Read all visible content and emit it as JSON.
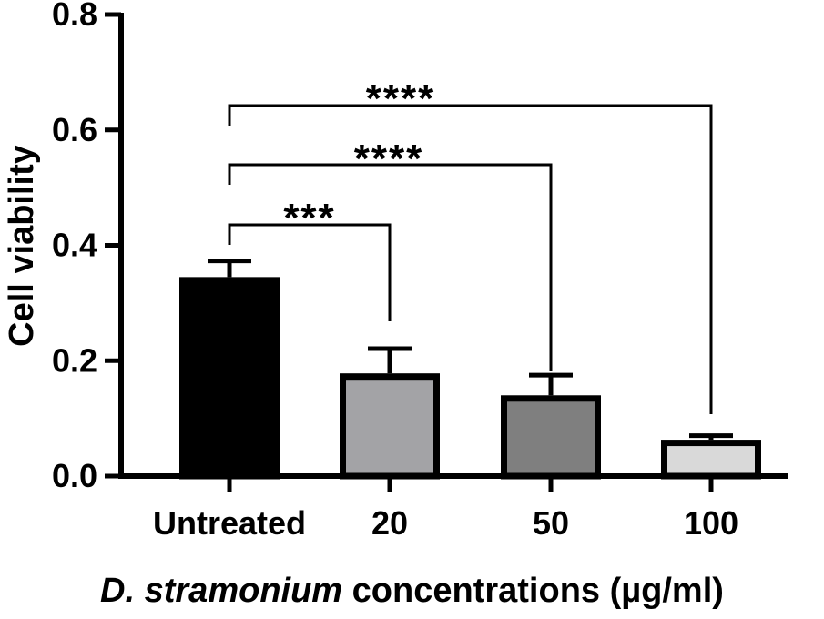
{
  "chart_data": {
    "type": "bar",
    "title": "",
    "xlabel_italic": "D. stramonium",
    "xlabel_rest": "concentrations",
    "xlabel_unit": "(µg/ml)",
    "ylabel": "Cell viability",
    "ylim": [
      0,
      0.8
    ],
    "yticks": [
      "0.0",
      "0.2",
      "0.4",
      "0.6",
      "0.8"
    ],
    "yticks_values": [
      0,
      0.2,
      0.4,
      0.6,
      0.8
    ],
    "categories": [
      "Untreated",
      "20",
      "50",
      "100"
    ],
    "values": [
      0.345,
      0.178,
      0.14,
      0.063
    ],
    "errors": [
      0.028,
      0.043,
      0.035,
      0.007
    ],
    "bar_colors": [
      "#000000",
      "#a3a3a6",
      "#7f7f7f",
      "#d9d9d9"
    ],
    "significance": [
      {
        "from": "Untreated",
        "to": "20",
        "label": "***"
      },
      {
        "from": "Untreated",
        "to": "50",
        "label": "****"
      },
      {
        "from": "Untreated",
        "to": "100",
        "label": "****"
      }
    ]
  }
}
